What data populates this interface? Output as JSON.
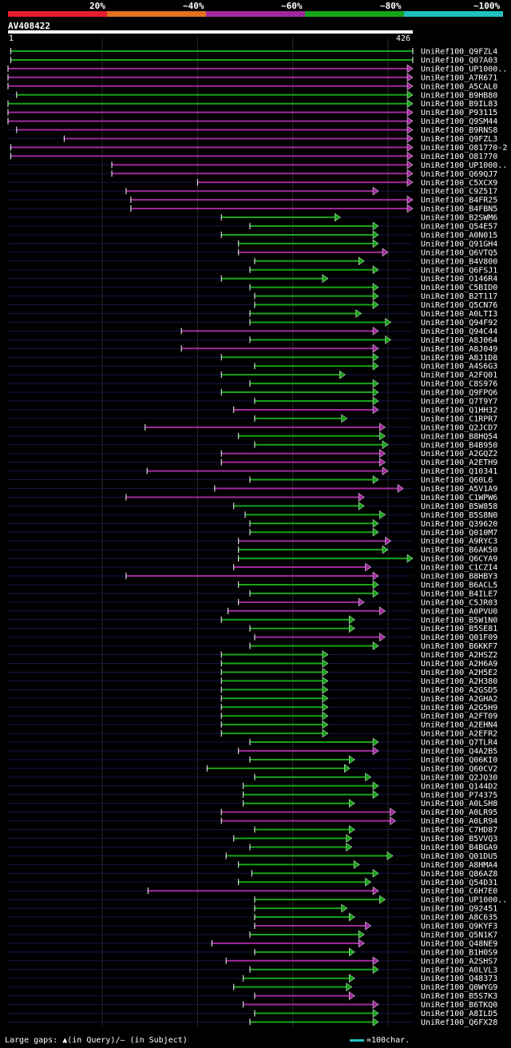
{
  "legend": [
    {
      "label": "20%",
      "color": "#e4202c"
    },
    {
      "label": "~40%",
      "color": "#e2731e"
    },
    {
      "label": "~60%",
      "color": "#a02a9c"
    },
    {
      "label": "~80%",
      "color": "#17a319"
    },
    {
      "label": "~100%",
      "color": "#21c0c0"
    }
  ],
  "query": {
    "name": "AV408422",
    "start": "1",
    "end": "426"
  },
  "footer": {
    "text": "Large gaps: ▲(in Query)/— (in Subject)",
    "scale": "=100char."
  },
  "chart_data": {
    "type": "alignment-overview",
    "title": "AV408422",
    "query_length": 426,
    "x_range": [
      1,
      426
    ],
    "identity_colors": {
      "20%": "#e4202c",
      "~40%": "#e2731e",
      "~60%": "#a02a9c",
      "~80%": "#17a319",
      "~100%": "#21c0c0"
    },
    "hits": [
      {
        "name": "UniRef100_Q9FZL4",
        "start": 4,
        "end": 426,
        "color": "#17a319",
        "arrow": "none"
      },
      {
        "name": "UniRef100_Q07A03",
        "start": 4,
        "end": 426,
        "color": "#17a319",
        "arrow": "none"
      },
      {
        "name": "UniRef100_UP1000..",
        "start": 1,
        "end": 426,
        "color": "#a02a9c",
        "arrow": "right"
      },
      {
        "name": "UniRef100_A7R671",
        "start": 1,
        "end": 426,
        "color": "#a02a9c",
        "arrow": "right"
      },
      {
        "name": "UniRef100_A5CAL0",
        "start": 1,
        "end": 426,
        "color": "#a02a9c",
        "arrow": "right"
      },
      {
        "name": "UniRef100_B9HB80",
        "start": 10,
        "end": 426,
        "color": "#17a319",
        "arrow": "right"
      },
      {
        "name": "UniRef100_B9IL83",
        "start": 1,
        "end": 426,
        "color": "#17a319",
        "arrow": "right"
      },
      {
        "name": "UniRef100_P93115",
        "start": 1,
        "end": 426,
        "color": "#a02a9c",
        "arrow": "right"
      },
      {
        "name": "UniRef100_Q9SM44",
        "start": 1,
        "end": 426,
        "color": "#a02a9c",
        "arrow": "right"
      },
      {
        "name": "UniRef100_B9RNS8",
        "start": 10,
        "end": 426,
        "color": "#a02a9c",
        "arrow": "right"
      },
      {
        "name": "UniRef100_Q9FZL3",
        "start": 60,
        "end": 426,
        "color": "#a02a9c",
        "arrow": "right"
      },
      {
        "name": "UniRef100_O81770-2",
        "start": 4,
        "end": 426,
        "color": "#a02a9c",
        "arrow": "right"
      },
      {
        "name": "UniRef100_O81770",
        "start": 4,
        "end": 426,
        "color": "#a02a9c",
        "arrow": "right"
      },
      {
        "name": "UniRef100_UP1000..",
        "start": 110,
        "end": 426,
        "color": "#a02a9c",
        "arrow": "right"
      },
      {
        "name": "UniRef100_Q69QJ7",
        "start": 110,
        "end": 426,
        "color": "#a02a9c",
        "arrow": "right"
      },
      {
        "name": "UniRef100_C5XCX9",
        "start": 200,
        "end": 426,
        "color": "#a02a9c",
        "arrow": "right"
      },
      {
        "name": "UniRef100_C9Z517",
        "start": 125,
        "end": 390,
        "color": "#a02a9c",
        "arrow": "right"
      },
      {
        "name": "UniRef100_B4FR25",
        "start": 130,
        "end": 426,
        "color": "#a02a9c",
        "arrow": "right"
      },
      {
        "name": "UniRef100_B4FBN5",
        "start": 130,
        "end": 426,
        "color": "#a02a9c",
        "arrow": "right"
      },
      {
        "name": "UniRef100_B2SWM6",
        "start": 225,
        "end": 350,
        "color": "#17a319",
        "arrow": "right"
      },
      {
        "name": "UniRef100_Q54E57",
        "start": 255,
        "end": 390,
        "color": "#17a319",
        "arrow": "right"
      },
      {
        "name": "UniRef100_A0N015",
        "start": 225,
        "end": 390,
        "color": "#17a319",
        "arrow": "right"
      },
      {
        "name": "UniRef100_Q91GH4",
        "start": 243,
        "end": 390,
        "color": "#17a319",
        "arrow": "right"
      },
      {
        "name": "UniRef100_Q6VTQ5",
        "start": 243,
        "end": 400,
        "color": "#a02a9c",
        "arrow": "right"
      },
      {
        "name": "UniRef100_B4V800",
        "start": 260,
        "end": 375,
        "color": "#17a319",
        "arrow": "right"
      },
      {
        "name": "UniRef100_Q6FSJ1",
        "start": 255,
        "end": 390,
        "color": "#17a319",
        "arrow": "right"
      },
      {
        "name": "UniRef100_O146R4",
        "start": 225,
        "end": 337,
        "color": "#17a319",
        "arrow": "right"
      },
      {
        "name": "UniRef100_C5BID0",
        "start": 255,
        "end": 390,
        "color": "#17a319",
        "arrow": "right"
      },
      {
        "name": "UniRef100_B2T117",
        "start": 260,
        "end": 390,
        "color": "#17a319",
        "arrow": "right"
      },
      {
        "name": "UniRef100_Q5CN76",
        "start": 260,
        "end": 390,
        "color": "#17a319",
        "arrow": "right"
      },
      {
        "name": "UniRef100_A0LTI3",
        "start": 255,
        "end": 372,
        "color": "#17a319",
        "arrow": "right"
      },
      {
        "name": "UniRef100_Q94F92",
        "start": 255,
        "end": 403,
        "color": "#17a319",
        "arrow": "right"
      },
      {
        "name": "UniRef100_Q94C44",
        "start": 183,
        "end": 390,
        "color": "#a02a9c",
        "arrow": "right"
      },
      {
        "name": "UniRef100_A8J064",
        "start": 255,
        "end": 403,
        "color": "#17a319",
        "arrow": "right"
      },
      {
        "name": "UniRef100_A8J049",
        "start": 183,
        "end": 390,
        "color": "#a02a9c",
        "arrow": "right"
      },
      {
        "name": "UniRef100_A8J1D8",
        "start": 225,
        "end": 390,
        "color": "#17a319",
        "arrow": "right"
      },
      {
        "name": "UniRef100_A4S6G3",
        "start": 260,
        "end": 390,
        "color": "#17a319",
        "arrow": "right"
      },
      {
        "name": "UniRef100_A2FQ01",
        "start": 225,
        "end": 355,
        "color": "#17a319",
        "arrow": "right"
      },
      {
        "name": "UniRef100_C8S976",
        "start": 255,
        "end": 390,
        "color": "#17a319",
        "arrow": "right"
      },
      {
        "name": "UniRef100_Q9FPQ6",
        "start": 225,
        "end": 390,
        "color": "#17a319",
        "arrow": "right"
      },
      {
        "name": "UniRef100_Q7T9Y7",
        "start": 260,
        "end": 390,
        "color": "#17a319",
        "arrow": "right"
      },
      {
        "name": "UniRef100_Q1HH32",
        "start": 238,
        "end": 390,
        "color": "#a02a9c",
        "arrow": "right"
      },
      {
        "name": "UniRef100_C1RPR7",
        "start": 260,
        "end": 357,
        "color": "#17a319",
        "arrow": "right"
      },
      {
        "name": "UniRef100_Q2JCD7",
        "start": 145,
        "end": 397,
        "color": "#a02a9c",
        "arrow": "right"
      },
      {
        "name": "UniRef100_B8HQ54",
        "start": 243,
        "end": 397,
        "color": "#17a319",
        "arrow": "right"
      },
      {
        "name": "UniRef100_B4B950",
        "start": 260,
        "end": 400,
        "color": "#17a319",
        "arrow": "right"
      },
      {
        "name": "UniRef100_A2GQZ2",
        "start": 225,
        "end": 397,
        "color": "#a02a9c",
        "arrow": "right"
      },
      {
        "name": "UniRef100_A2ETH9",
        "start": 225,
        "end": 397,
        "color": "#a02a9c",
        "arrow": "right"
      },
      {
        "name": "UniRef100_Q10341",
        "start": 147,
        "end": 400,
        "color": "#a02a9c",
        "arrow": "right"
      },
      {
        "name": "UniRef100_Q60L6",
        "start": 255,
        "end": 390,
        "color": "#17a319",
        "arrow": "right"
      },
      {
        "name": "UniRef100_A5V1A9",
        "start": 218,
        "end": 416,
        "color": "#a02a9c",
        "arrow": "right"
      },
      {
        "name": "UniRef100_C1WPW6",
        "start": 125,
        "end": 375,
        "color": "#a02a9c",
        "arrow": "right"
      },
      {
        "name": "UniRef100_B5W858",
        "start": 238,
        "end": 375,
        "color": "#17a319",
        "arrow": "right"
      },
      {
        "name": "UniRef100_B5S8N0",
        "start": 250,
        "end": 397,
        "color": "#17a319",
        "arrow": "right"
      },
      {
        "name": "UniRef100_Q39620",
        "start": 255,
        "end": 390,
        "color": "#17a319",
        "arrow": "right"
      },
      {
        "name": "UniRef100_Q010M7",
        "start": 255,
        "end": 390,
        "color": "#17a319",
        "arrow": "right"
      },
      {
        "name": "UniRef100_A9RYC3",
        "start": 243,
        "end": 403,
        "color": "#a02a9c",
        "arrow": "right"
      },
      {
        "name": "UniRef100_B6AK50",
        "start": 243,
        "end": 400,
        "color": "#17a319",
        "arrow": "right"
      },
      {
        "name": "UniRef100_Q6CYA9",
        "start": 243,
        "end": 426,
        "color": "#17a319",
        "arrow": "right"
      },
      {
        "name": "UniRef100_C1CZI4",
        "start": 238,
        "end": 382,
        "color": "#a02a9c",
        "arrow": "right"
      },
      {
        "name": "UniRef100_B8HBY3",
        "start": 125,
        "end": 390,
        "color": "#a02a9c",
        "arrow": "right"
      },
      {
        "name": "UniRef100_B6ACL5",
        "start": 243,
        "end": 390,
        "color": "#17a319",
        "arrow": "right"
      },
      {
        "name": "UniRef100_B4ILE7",
        "start": 255,
        "end": 390,
        "color": "#17a319",
        "arrow": "right"
      },
      {
        "name": "UniRef100_C5JR03",
        "start": 243,
        "end": 375,
        "color": "#a02a9c",
        "arrow": "right"
      },
      {
        "name": "UniRef100_A0PVU0",
        "start": 232,
        "end": 397,
        "color": "#a02a9c",
        "arrow": "right"
      },
      {
        "name": "UniRef100_B5W1N0",
        "start": 225,
        "end": 365,
        "color": "#17a319",
        "arrow": "right"
      },
      {
        "name": "UniRef100_B5SE81",
        "start": 255,
        "end": 365,
        "color": "#17a319",
        "arrow": "right"
      },
      {
        "name": "UniRef100_Q01F09",
        "start": 260,
        "end": 397,
        "color": "#a02a9c",
        "arrow": "right"
      },
      {
        "name": "UniRef100_B6KKF7",
        "start": 255,
        "end": 390,
        "color": "#17a319",
        "arrow": "right"
      },
      {
        "name": "UniRef100_A2HSZ2",
        "start": 225,
        "end": 337,
        "color": "#17a319",
        "arrow": "right"
      },
      {
        "name": "UniRef100_A2H6A9",
        "start": 225,
        "end": 337,
        "color": "#17a319",
        "arrow": "right"
      },
      {
        "name": "UniRef100_A2H5E2",
        "start": 225,
        "end": 337,
        "color": "#17a319",
        "arrow": "right"
      },
      {
        "name": "UniRef100_A2H380",
        "start": 225,
        "end": 337,
        "color": "#17a319",
        "arrow": "right"
      },
      {
        "name": "UniRef100_A2GSD5",
        "start": 225,
        "end": 337,
        "color": "#17a319",
        "arrow": "right"
      },
      {
        "name": "UniRef100_A2GHA2",
        "start": 225,
        "end": 337,
        "color": "#17a319",
        "arrow": "right"
      },
      {
        "name": "UniRef100_A2G5H9",
        "start": 225,
        "end": 337,
        "color": "#17a319",
        "arrow": "right"
      },
      {
        "name": "UniRef100_A2FT09",
        "start": 225,
        "end": 337,
        "color": "#17a319",
        "arrow": "right"
      },
      {
        "name": "UniRef100_A2EHN4",
        "start": 225,
        "end": 337,
        "color": "#17a319",
        "arrow": "right"
      },
      {
        "name": "UniRef100_A2EFR2",
        "start": 225,
        "end": 337,
        "color": "#17a319",
        "arrow": "right"
      },
      {
        "name": "UniRef100_Q7TLR4",
        "start": 255,
        "end": 390,
        "color": "#17a319",
        "arrow": "right"
      },
      {
        "name": "UniRef100_Q4A2B5",
        "start": 243,
        "end": 390,
        "color": "#a02a9c",
        "arrow": "right"
      },
      {
        "name": "UniRef100_Q06KI0",
        "start": 255,
        "end": 365,
        "color": "#17a319",
        "arrow": "right"
      },
      {
        "name": "UniRef100_Q60CV2",
        "start": 210,
        "end": 360,
        "color": "#17a319",
        "arrow": "right"
      },
      {
        "name": "UniRef100_Q2JQ30",
        "start": 260,
        "end": 382,
        "color": "#17a319",
        "arrow": "right"
      },
      {
        "name": "UniRef100_Q144D2",
        "start": 248,
        "end": 390,
        "color": "#17a319",
        "arrow": "right"
      },
      {
        "name": "UniRef100_P74375",
        "start": 248,
        "end": 390,
        "color": "#17a319",
        "arrow": "right"
      },
      {
        "name": "UniRef100_A0LSH8",
        "start": 248,
        "end": 365,
        "color": "#17a319",
        "arrow": "right"
      },
      {
        "name": "UniRef100_A0LR95",
        "start": 225,
        "end": 408,
        "color": "#a02a9c",
        "arrow": "right"
      },
      {
        "name": "UniRef100_A0LR94",
        "start": 225,
        "end": 408,
        "color": "#a02a9c",
        "arrow": "right"
      },
      {
        "name": "UniRef100_C7HD87",
        "start": 260,
        "end": 365,
        "color": "#17a319",
        "arrow": "right"
      },
      {
        "name": "UniRef100_B5VVQ3",
        "start": 238,
        "end": 362,
        "color": "#17a319",
        "arrow": "right"
      },
      {
        "name": "UniRef100_B4BGA9",
        "start": 255,
        "end": 362,
        "color": "#17a319",
        "arrow": "right"
      },
      {
        "name": "UniRef100_Q01DU5",
        "start": 230,
        "end": 405,
        "color": "#17a319",
        "arrow": "right"
      },
      {
        "name": "UniRef100_A8HMA4",
        "start": 243,
        "end": 370,
        "color": "#17a319",
        "arrow": "right"
      },
      {
        "name": "UniRef100_Q86AZ8",
        "start": 257,
        "end": 390,
        "color": "#17a319",
        "arrow": "right"
      },
      {
        "name": "UniRef100_Q54D31",
        "start": 243,
        "end": 382,
        "color": "#17a319",
        "arrow": "right"
      },
      {
        "name": "UniRef100_C6H7E0",
        "start": 148,
        "end": 390,
        "color": "#a02a9c",
        "arrow": "right"
      },
      {
        "name": "UniRef100_UP1000..",
        "start": 260,
        "end": 397,
        "color": "#17a319",
        "arrow": "right"
      },
      {
        "name": "UniRef100_Q92451",
        "start": 260,
        "end": 357,
        "color": "#17a319",
        "arrow": "right"
      },
      {
        "name": "UniRef100_A8C635",
        "start": 260,
        "end": 365,
        "color": "#17a319",
        "arrow": "right"
      },
      {
        "name": "UniRef100_Q9KYF3",
        "start": 260,
        "end": 382,
        "color": "#a02a9c",
        "arrow": "right"
      },
      {
        "name": "UniRef100_Q5N1K7",
        "start": 255,
        "end": 375,
        "color": "#17a319",
        "arrow": "right"
      },
      {
        "name": "UniRef100_Q48NE9",
        "start": 215,
        "end": 375,
        "color": "#a02a9c",
        "arrow": "right"
      },
      {
        "name": "UniRef100_B1H0S9",
        "start": 260,
        "end": 365,
        "color": "#17a319",
        "arrow": "right"
      },
      {
        "name": "UniRef100_A2SHS7",
        "start": 230,
        "end": 390,
        "color": "#a02a9c",
        "arrow": "right"
      },
      {
        "name": "UniRef100_A0LVL3",
        "start": 255,
        "end": 390,
        "color": "#17a319",
        "arrow": "right"
      },
      {
        "name": "UniRef100_Q48373",
        "start": 248,
        "end": 365,
        "color": "#17a319",
        "arrow": "right"
      },
      {
        "name": "UniRef100_Q0WYG9",
        "start": 238,
        "end": 362,
        "color": "#17a319",
        "arrow": "right"
      },
      {
        "name": "UniRef100_B5S7K3",
        "start": 260,
        "end": 365,
        "color": "#a02a9c",
        "arrow": "right"
      },
      {
        "name": "UniRef100_B6TKQ0",
        "start": 248,
        "end": 390,
        "color": "#a02a9c",
        "arrow": "right"
      },
      {
        "name": "UniRef100_A8ILD5",
        "start": 260,
        "end": 390,
        "color": "#17a319",
        "arrow": "right"
      },
      {
        "name": "UniRef100_Q6FX28",
        "start": 255,
        "end": 390,
        "color": "#17a319",
        "arrow": "right"
      }
    ]
  }
}
